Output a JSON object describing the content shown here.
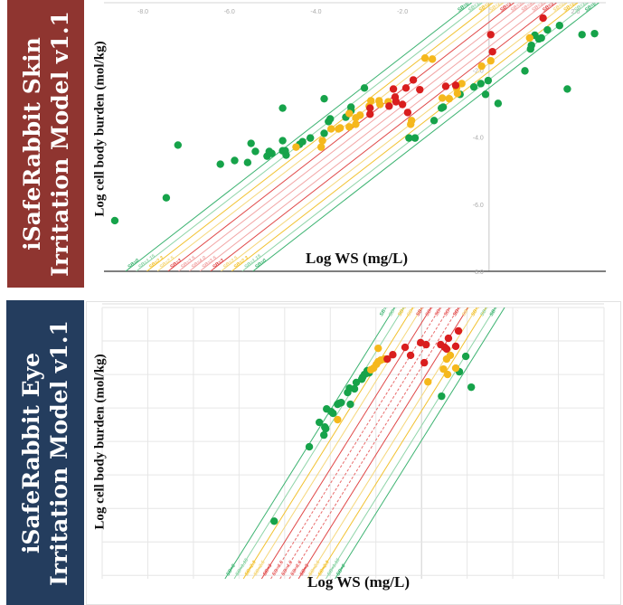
{
  "panels": {
    "top": {
      "banner_line1": "iSafeRabbit Skin",
      "banner_line2": "Irritation Model v1.1",
      "banner_color": "#8f3530"
    },
    "bottom": {
      "banner_line1": "iSafeRabbit Eye",
      "banner_line2": "Irritation Model v1.1",
      "banner_color": "#243d5e"
    }
  },
  "point_colors": {
    "green": "#16a34a",
    "yellow": "#f5b81c",
    "red": "#d91e1e"
  },
  "chart_data": [
    {
      "type": "scatter",
      "title": "",
      "xlabel": "Log WS (mg/L)",
      "ylabel": "Log cell body burden (mol/kg)",
      "xlim": [
        -8.9,
        2.7
      ],
      "ylim": [
        -8.0,
        0
      ],
      "grid": false,
      "x_ticks": [
        {
          "value": -8,
          "label": "-8.0"
        },
        {
          "value": -6,
          "label": "-6.0"
        },
        {
          "value": -4,
          "label": "-4.0"
        },
        {
          "value": -2,
          "label": "-2.0"
        },
        {
          "value": 2,
          "label": "2.0"
        }
      ],
      "y_ticks": [
        {
          "value": -2,
          "label": "-2.0"
        },
        {
          "value": -4,
          "label": "-4.0"
        },
        {
          "value": -6,
          "label": "-6.0"
        },
        {
          "value": -8,
          "label": "-8.0"
        }
      ],
      "reference_slope": 1,
      "reference_lines": [
        {
          "label": "SB=0",
          "intercept": 0.4,
          "color": "#3cb371"
        },
        {
          "label": "SB=1.15",
          "intercept": 0.155,
          "color": "#8fd4a8"
        },
        {
          "label": "SB=2.3",
          "intercept": -0.09,
          "color": "#f2c230"
        },
        {
          "label": "SB=2.5",
          "intercept": -0.335,
          "color": "#f5d77a"
        },
        {
          "label": "SB=3",
          "intercept": -0.58,
          "color": "#e04848"
        },
        {
          "label": "SB=3.5",
          "intercept": -0.825,
          "color": "#f2a5a5"
        },
        {
          "label": "SB=4.0",
          "intercept": -1.07,
          "color": "#f2a5a5"
        },
        {
          "label": "SB=3.5",
          "intercept": -1.315,
          "color": "#f2a5a5"
        },
        {
          "label": "SB=3",
          "intercept": -1.56,
          "color": "#e04848"
        },
        {
          "label": "SB=2.5",
          "intercept": -1.805,
          "color": "#f5d77a"
        },
        {
          "label": "SB=2.3",
          "intercept": -2.05,
          "color": "#f2c230"
        },
        {
          "label": "SB=1.15",
          "intercept": -2.295,
          "color": "#8fd4a8"
        },
        {
          "label": "SB=0",
          "intercept": -2.54,
          "color": "#3cb371"
        }
      ],
      "series": [
        {
          "category": "green",
          "points": [
            [
              -8.65,
              -6.49
            ],
            [
              -7.46,
              -5.81
            ],
            [
              -7.19,
              -4.24
            ],
            [
              -6.21,
              -4.81
            ],
            [
              -5.88,
              -4.7
            ],
            [
              -5.58,
              -4.76
            ],
            [
              -5.5,
              -4.19
            ],
            [
              -5.4,
              -4.43
            ],
            [
              -5.13,
              -4.57
            ],
            [
              -5.08,
              -4.43
            ],
            [
              -5.02,
              -4.49
            ],
            [
              -4.77,
              -4.41
            ],
            [
              -4.71,
              -4.41
            ],
            [
              -4.69,
              -4.54
            ],
            [
              -4.77,
              -4.11
            ],
            [
              -4.77,
              -3.14
            ],
            [
              -4.38,
              -4.22
            ],
            [
              -4.31,
              -4.14
            ],
            [
              -4.13,
              -4.03
            ],
            [
              -3.81,
              -2.86
            ],
            [
              -2.88,
              -2.54
            ],
            [
              -3.81,
              -3.89
            ],
            [
              -3.71,
              -3.54
            ],
            [
              -3.67,
              -3.46
            ],
            [
              -3.31,
              -3.41
            ],
            [
              -3.19,
              -3.22
            ],
            [
              -3.19,
              -3.11
            ],
            [
              -1.85,
              -4.03
            ],
            [
              -1.71,
              -4.03
            ],
            [
              -1.27,
              -3.51
            ],
            [
              -1.1,
              -3.14
            ],
            [
              -1.06,
              -3.11
            ],
            [
              -0.67,
              -2.73
            ],
            [
              -0.35,
              -2.51
            ],
            [
              -0.19,
              -2.41
            ],
            [
              -0.08,
              -2.73
            ],
            [
              -0.02,
              -2.32
            ],
            [
              0.21,
              -3.0
            ],
            [
              0.83,
              -2.03
            ],
            [
              1.06,
              -0.97
            ],
            [
              0.98,
              -1.27
            ],
            [
              0.96,
              -1.38
            ],
            [
              1.15,
              -1.08
            ],
            [
              1.21,
              -1.05
            ],
            [
              1.35,
              -0.81
            ],
            [
              1.63,
              -0.68
            ],
            [
              2.15,
              -0.95
            ],
            [
              2.44,
              -0.92
            ],
            [
              1.81,
              -2.57
            ]
          ]
        },
        {
          "category": "yellow",
          "points": [
            [
              -4.46,
              -4.3
            ],
            [
              -3.85,
              -4.11
            ],
            [
              -3.88,
              -4.3
            ],
            [
              -3.65,
              -3.76
            ],
            [
              -3.48,
              -3.76
            ],
            [
              -3.44,
              -3.73
            ],
            [
              -3.23,
              -3.7
            ],
            [
              -3.23,
              -3.3
            ],
            [
              -3.08,
              -3.62
            ],
            [
              -3.08,
              -3.43
            ],
            [
              -2.98,
              -3.35
            ],
            [
              -2.77,
              -3.08
            ],
            [
              -2.73,
              -2.92
            ],
            [
              -2.54,
              -2.92
            ],
            [
              -2.52,
              -3.03
            ],
            [
              -2.33,
              -2.95
            ],
            [
              -1.79,
              -3.51
            ],
            [
              -1.81,
              -3.62
            ],
            [
              -1.48,
              -1.65
            ],
            [
              -1.31,
              -1.68
            ],
            [
              -1.08,
              -2.84
            ],
            [
              -0.92,
              -2.86
            ],
            [
              -0.75,
              -2.54
            ],
            [
              -0.73,
              -2.7
            ],
            [
              -0.63,
              -2.41
            ],
            [
              -0.17,
              -1.89
            ],
            [
              0.04,
              -1.73
            ],
            [
              0.94,
              -1.05
            ]
          ]
        },
        {
          "category": "red",
          "points": [
            [
              -2.75,
              -3.14
            ],
            [
              -2.75,
              -3.32
            ],
            [
              -2.31,
              -3.08
            ],
            [
              -2.21,
              -2.57
            ],
            [
              -2.17,
              -2.81
            ],
            [
              -2.15,
              -2.95
            ],
            [
              -2.0,
              -3.03
            ],
            [
              -1.92,
              -2.54
            ],
            [
              -1.88,
              -3.27
            ],
            [
              -1.75,
              -2.3
            ],
            [
              -1.6,
              -2.59
            ],
            [
              -1.0,
              -2.49
            ],
            [
              -0.77,
              -2.46
            ],
            [
              0.04,
              -0.95
            ],
            [
              0.08,
              -1.46
            ],
            [
              1.25,
              -0.46
            ]
          ]
        }
      ]
    },
    {
      "type": "scatter",
      "title": "",
      "xlabel": "Log WS (mg/L)",
      "ylabel": "Log cell body burden (mol/kg)",
      "xlim": [
        -7,
        4
      ],
      "ylim": [
        -8.1,
        0
      ],
      "grid": true,
      "reference_slope": 2.18,
      "reference_lines": [
        {
          "label": "SB=0",
          "intercept": 1.29,
          "color": "#3cb371"
        },
        {
          "label": "SB=1.15",
          "intercept": 0.85,
          "color": "#8fd4a8"
        },
        {
          "label": "SB=2.3",
          "intercept": 0.41,
          "color": "#f2c230"
        },
        {
          "label": "SB=2.5",
          "intercept": -0.02,
          "color": "#f5d77a"
        },
        {
          "label": "SB=3",
          "intercept": -0.46,
          "color": "#e04848"
        },
        {
          "label": "SB=3.5",
          "intercept": -0.9,
          "color": "#e86a6a"
        },
        {
          "label": "SB=4.0",
          "intercept": -1.34,
          "color": "#e86a6a"
        },
        {
          "label": "SB=3.5",
          "intercept": -1.78,
          "color": "#e86a6a"
        },
        {
          "label": "SB=3",
          "intercept": -2.22,
          "color": "#e04848"
        },
        {
          "label": "SB=2.5",
          "intercept": -2.65,
          "color": "#f5d77a"
        },
        {
          "label": "SB=2.3",
          "intercept": -3.09,
          "color": "#f2c230"
        },
        {
          "label": "SB=1.15",
          "intercept": -3.53,
          "color": "#8fd4a8"
        },
        {
          "label": "SB=0",
          "intercept": -3.97,
          "color": "#3cb371"
        }
      ],
      "series": [
        {
          "category": "green",
          "points": [
            [
              0.83,
              -1.92
            ],
            [
              0.97,
              -1.46
            ],
            [
              1.09,
              -2.38
            ],
            [
              0.44,
              -2.65
            ],
            [
              -1.15,
              -1.95
            ],
            [
              -1.21,
              -1.97
            ],
            [
              -1.29,
              -2.08
            ],
            [
              -1.25,
              -2.0
            ],
            [
              -1.19,
              -1.89
            ],
            [
              -1.31,
              -2.14
            ],
            [
              -1.43,
              -2.24
            ],
            [
              -1.58,
              -2.41
            ],
            [
              -1.47,
              -2.43
            ],
            [
              -1.62,
              -2.54
            ],
            [
              -1.8,
              -2.86
            ],
            [
              -1.76,
              -2.84
            ],
            [
              -1.84,
              -2.89
            ],
            [
              -1.56,
              -2.89
            ],
            [
              -2.08,
              -3.03
            ],
            [
              -1.98,
              -3.11
            ],
            [
              -1.94,
              -3.16
            ],
            [
              -2.24,
              -3.43
            ],
            [
              -2.12,
              -3.57
            ],
            [
              -2.1,
              -3.62
            ],
            [
              -2.14,
              -3.81
            ],
            [
              -2.46,
              -4.16
            ],
            [
              -3.23,
              -6.38
            ]
          ]
        },
        {
          "category": "yellow",
          "points": [
            [
              -0.95,
              -1.22
            ],
            [
              0.63,
              -1.43
            ],
            [
              0.55,
              -1.54
            ],
            [
              0.48,
              -1.84
            ],
            [
              0.57,
              -2.0
            ],
            [
              0.75,
              -1.81
            ],
            [
              0.14,
              -2.22
            ],
            [
              -0.95,
              -1.62
            ],
            [
              -0.89,
              -1.57
            ],
            [
              -0.81,
              -1.54
            ],
            [
              -0.99,
              -1.7
            ],
            [
              -1.05,
              -1.81
            ],
            [
              -1.11,
              -1.86
            ],
            [
              -1.84,
              -3.35
            ]
          ]
        },
        {
          "category": "red",
          "points": [
            [
              -0.63,
              -1.41
            ],
            [
              -0.75,
              -1.54
            ],
            [
              -0.36,
              -1.19
            ],
            [
              -0.24,
              -1.43
            ],
            [
              -0.02,
              -1.05
            ],
            [
              0.1,
              -1.11
            ],
            [
              0.06,
              -1.65
            ],
            [
              0.42,
              -1.11
            ],
            [
              0.51,
              -1.19
            ],
            [
              0.55,
              -1.24
            ],
            [
              0.59,
              -0.92
            ],
            [
              0.75,
              -1.16
            ],
            [
              0.81,
              -0.7
            ]
          ]
        }
      ]
    }
  ]
}
